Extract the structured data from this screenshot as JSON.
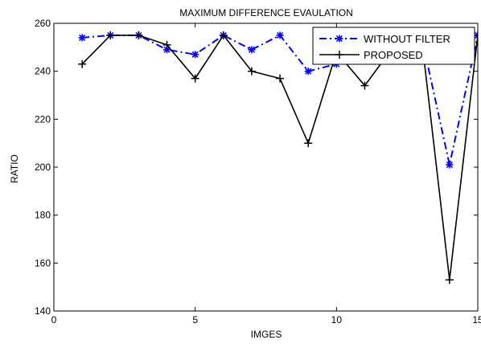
{
  "chart_data": {
    "type": "line",
    "title": "MAXIMUM DIFFERENCE EVAULATION",
    "xlabel": "IMGES",
    "ylabel": "RATIO",
    "xlim": [
      0,
      15
    ],
    "ylim": [
      140,
      260
    ],
    "xticks": [
      0,
      5,
      10,
      15
    ],
    "yticks": [
      140,
      160,
      180,
      200,
      220,
      240,
      260
    ],
    "grid": false,
    "legend_position": "top-right",
    "x": [
      1,
      2,
      3,
      4,
      5,
      6,
      7,
      8,
      9,
      10,
      11,
      12,
      13,
      14,
      15
    ],
    "series": [
      {
        "name": "WITHOUT FILTER",
        "color": "#0000ff",
        "line_style": "dash-dot",
        "marker": "star",
        "values": [
          254,
          255,
          255,
          249,
          247,
          255,
          249,
          255,
          240,
          243,
          245,
          250,
          255,
          201,
          255
        ]
      },
      {
        "name": "PROPOSED",
        "color": "#000000",
        "line_style": "solid",
        "marker": "plus",
        "values": [
          243,
          255,
          255,
          251,
          237,
          255,
          240,
          237,
          210,
          248,
          234,
          250,
          255,
          153,
          255
        ]
      }
    ]
  }
}
